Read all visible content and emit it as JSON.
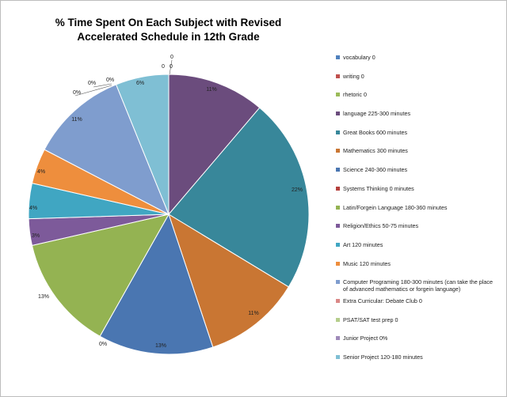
{
  "chart_data": {
    "type": "pie",
    "title_lines": [
      "% Time Spent On Each Subject with Revised",
      "Accelerated Schedule in 12th Grade"
    ],
    "slices": [
      {
        "name": "vocabulary 0",
        "value": 0,
        "label": "0",
        "color": "#4F81BD"
      },
      {
        "name": "writing 0",
        "value": 0,
        "label": "0",
        "color": "#C0504D"
      },
      {
        "name": "rhetoric 0",
        "value": 0,
        "label": "0",
        "color": "#9BBB59"
      },
      {
        "name": "language 225-300 minutes",
        "value": 11,
        "label": "11%",
        "color": "#6B4C7D"
      },
      {
        "name": "Great Books 600 minutes",
        "value": 22,
        "label": "22%",
        "color": "#38879A"
      },
      {
        "name": "Mathematics 300 minutes",
        "value": 11,
        "label": "11%",
        "color": "#C97633"
      },
      {
        "name": "Science 240-360 minutes",
        "value": 13,
        "label": "13%",
        "color": "#4A76B1"
      },
      {
        "name": "Systems Thinking 0 minutes",
        "value": 0,
        "label": "0%",
        "color": "#B5403C"
      },
      {
        "name": "Latin/Forgein Language 180-360 minutes",
        "value": 13,
        "label": "13%",
        "color": "#94B352"
      },
      {
        "name": "Religion/Ethics 50-75 minutes",
        "value": 3,
        "label": "3%",
        "color": "#7D5A9A"
      },
      {
        "name": "Art 120 minutes",
        "value": 4,
        "label": "4%",
        "color": "#40A6C2"
      },
      {
        "name": "Music 120 minutes",
        "value": 4,
        "label": "4%",
        "color": "#EE8E3D"
      },
      {
        "name": "Computer Programing 180-300 minutes (can take the place of advanced mathematics or forgein language)",
        "value": 11,
        "label": "11%",
        "color": "#7F9DCE"
      },
      {
        "name": "Extra Curricular: Debate Club 0",
        "value": 0,
        "label": "0%",
        "color": "#DA8887"
      },
      {
        "name": "PSAT/SAT test prep 0",
        "value": 0,
        "label": "0%",
        "color": "#B5CE8C"
      },
      {
        "name": "Junior Project 0%",
        "value": 0,
        "label": "0%",
        "color": "#9F8AB9"
      },
      {
        "name": "Senior Project 120-180 minutes",
        "value": 6,
        "label": "6%",
        "color": "#7FBFD4"
      }
    ],
    "legend_position": "right"
  }
}
